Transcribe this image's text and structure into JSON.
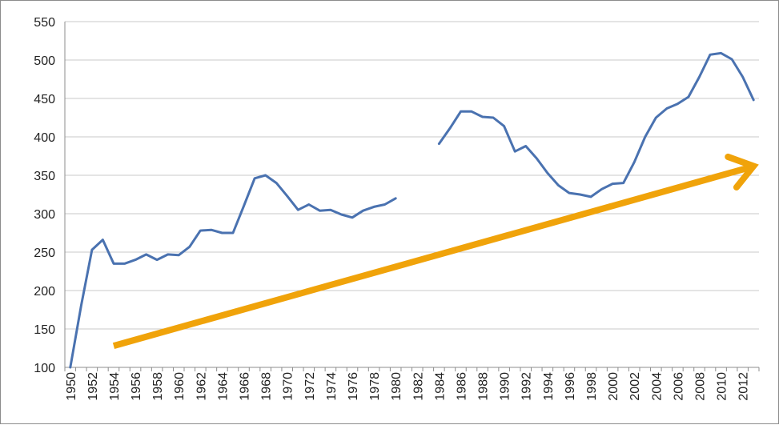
{
  "chart_data": {
    "type": "line",
    "title": "",
    "xlabel": "",
    "ylabel": "",
    "xlim": [
      1950,
      2013
    ],
    "ylim": [
      100,
      550
    ],
    "yticks": [
      100,
      150,
      200,
      250,
      300,
      350,
      400,
      450,
      500,
      550
    ],
    "xtick_labels": [
      "1950",
      "1952",
      "1954",
      "1956",
      "1958",
      "1960",
      "1962",
      "1964",
      "1966",
      "1968",
      "1970",
      "1972",
      "1974",
      "1976",
      "1978",
      "1980",
      "1982",
      "1984",
      "1986",
      "1988",
      "1990",
      "1992",
      "1994",
      "1996",
      "1998",
      "2000",
      "2002",
      "2004",
      "2006",
      "2008",
      "2010",
      "2012"
    ],
    "grid": "horizontal",
    "legend": "none",
    "series": [
      {
        "color": "#4a72b0",
        "segments": [
          {
            "x": [
              1950,
              1951,
              1952,
              1953,
              1954,
              1955,
              1956,
              1957,
              1958,
              1959,
              1960,
              1961,
              1962,
              1963,
              1964,
              1965,
              1966,
              1967,
              1968,
              1969,
              1970,
              1971,
              1972,
              1973,
              1974,
              1975,
              1976,
              1977,
              1978,
              1979,
              1980
            ],
            "y": [
              100,
              180,
              253,
              266,
              235,
              235,
              240,
              247,
              240,
              247,
              246,
              257,
              278,
              279,
              275,
              275,
              310,
              346,
              350,
              340,
              323,
              305,
              312,
              304,
              305,
              299,
              295,
              304,
              309,
              312,
              320
            ]
          },
          {
            "x": [
              1984,
              1985,
              1986,
              1987,
              1988,
              1989,
              1990,
              1991,
              1992,
              1993,
              1994,
              1995,
              1996,
              1997,
              1998,
              1999,
              2000,
              2001,
              2002,
              2003,
              2004,
              2005,
              2006,
              2007,
              2008,
              2009,
              2010,
              2011,
              2012,
              2013
            ],
            "y": [
              391,
              411,
              433,
              433,
              426,
              425,
              414,
              381,
              388,
              372,
              353,
              337,
              327,
              325,
              322,
              332,
              339,
              340,
              367,
              400,
              425,
              437,
              443,
              452,
              478,
              507,
              509,
              501,
              478,
              448
            ]
          }
        ]
      }
    ],
    "annotations": [
      {
        "type": "arrow",
        "color": "#f0a30a",
        "from": [
          1954,
          128
        ],
        "to": [
          2013,
          362
        ]
      }
    ]
  }
}
